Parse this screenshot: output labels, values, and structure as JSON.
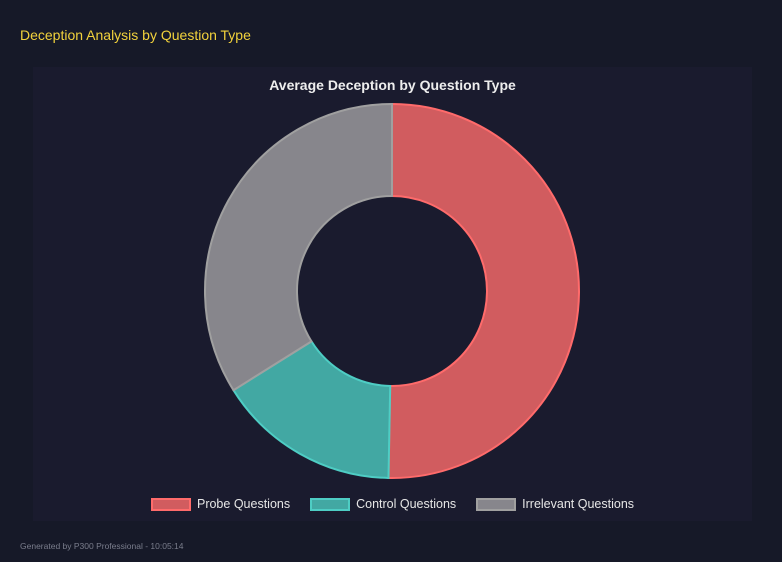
{
  "header": {
    "title": "Deception Analysis by Question Type"
  },
  "chart_data": {
    "type": "doughnut",
    "title": "Average Deception by Question Type",
    "categories": [
      "Probe Questions",
      "Control Questions",
      "Irrelevant Questions"
    ],
    "values": [
      50.3,
      15.8,
      33.9
    ],
    "colors": [
      "#d15c5f",
      "#42a8a3",
      "#87868c"
    ],
    "border_colors": [
      "#ff6b6b",
      "#4ecdc4",
      "#a0a0a0"
    ],
    "legend_position": "bottom"
  },
  "footer": {
    "text": "Generated by P300 Professional - 10:05:14"
  }
}
